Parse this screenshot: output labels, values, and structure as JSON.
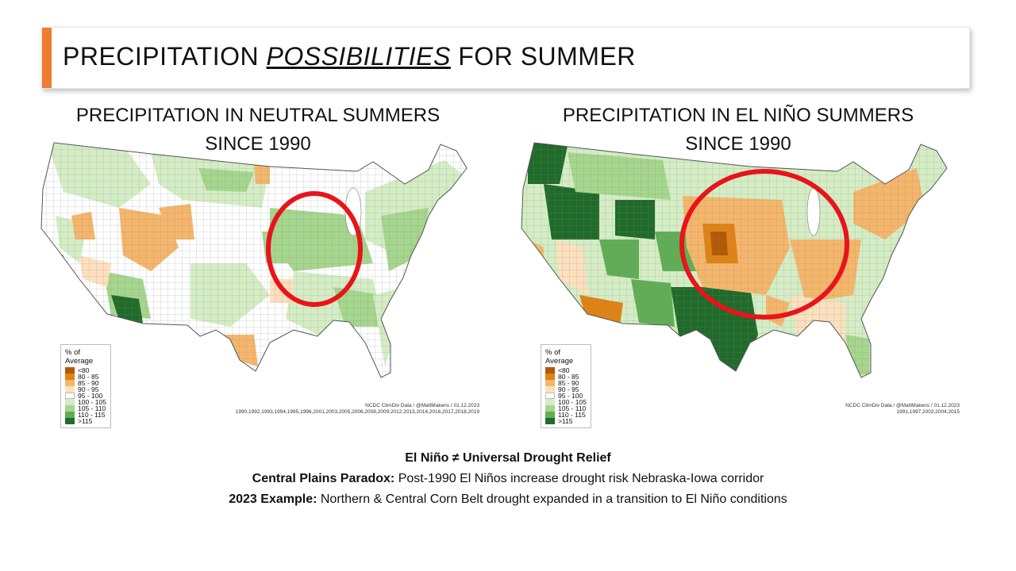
{
  "slide_title": {
    "before": "PRECIPITATION ",
    "emphasis": "POSSIBILITIES",
    "after": " FOR SUMMER",
    "accent_color": "#ed7d31"
  },
  "maps": [
    {
      "title_line1": "PRECIPITATION IN NEUTRAL SUMMERS",
      "title_line2": "SINCE 1990",
      "credit": "NCDC ClimDiv Data / @MattMakens / 01.12.2023",
      "years": "1990,1992,1993,1994,1995,1996,2001,2003,2005,2006,2008,2009,2012,2013,2014,2016,2017,2018,2019",
      "highlight": "Upper Midwest / Iowa-Illinois"
    },
    {
      "title_line1": "PRECIPITATION IN EL NIÑO SUMMERS",
      "title_line2": "SINCE 1990",
      "credit": "NCDC ClimDiv Data / @MattMakens / 01.12.2023",
      "years": "1991,1997,2002,2004,2015",
      "highlight": "Central Plains / Nebraska-Iowa"
    }
  ],
  "legend": {
    "title": "% of Average",
    "items": [
      {
        "label": "<80",
        "color": "#b35806"
      },
      {
        "label": "80 - 85",
        "color": "#e08214"
      },
      {
        "label": "85 - 90",
        "color": "#f5b66b"
      },
      {
        "label": "90 - 95",
        "color": "#fde0bd"
      },
      {
        "label": "95 - 100",
        "color": "#ffffff"
      },
      {
        "label": "100 - 105",
        "color": "#d4edc4"
      },
      {
        "label": "105 - 110",
        "color": "#a5d68d"
      },
      {
        "label": "110 - 115",
        "color": "#5fae55"
      },
      {
        "label": ">115",
        "color": "#1f6b2a"
      }
    ]
  },
  "circle_color": "#e8141b",
  "footer": {
    "headline": "El Niño ≠ Universal Drought Relief",
    "line2_label": "Central Plains Paradox:",
    "line2_text": " Post-1990 El Niños increase drought risk Nebraska-Iowa corridor",
    "line3_label": "2023 Example:",
    "line3_text": " Northern & Central Corn Belt drought expanded in a transition to El Niño conditions"
  }
}
